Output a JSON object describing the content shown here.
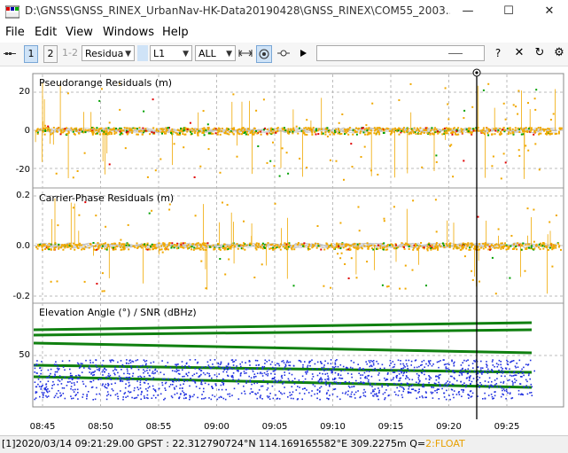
{
  "window": {
    "title": "D:\\GNSS\\GNSS_RINEX_UrbanNav-HK-Data20190428\\GNSS_RINEX\\COM55_2003...",
    "minimize": "—",
    "maximize": "☐",
    "close": "✕"
  },
  "menu": [
    "File",
    "Edit",
    "View",
    "Windows",
    "Help"
  ],
  "toolbar": {
    "btn1": "1",
    "btn2": "2",
    "btn12": "1-2",
    "plot_type": "Residua",
    "freq": "L1",
    "sat": "ALL",
    "help": "?"
  },
  "panels": {
    "p1_title": "Pseudorange Residuals (m)",
    "p1_ticks": [
      "20",
      "0",
      "-20"
    ],
    "p2_title": "Carrier-Phase Residuals (m)",
    "p2_ticks": [
      "0.2",
      "0.0",
      "-0.2"
    ],
    "p3_title": "Elevation Angle (°) / SNR (dBHz)",
    "p3_ticks": [
      "50"
    ]
  },
  "time_axis": [
    "08:45",
    "08:50",
    "08:55",
    "09:00",
    "09:05",
    "09:10",
    "09:15",
    "09:20",
    "09:25"
  ],
  "status": {
    "prefix": "[1]2020/03/14 09:21:29.00 GPST :  22.312790724°N  114.169165582°E  309.2275m  Q=",
    "quality": "2:FLOAT"
  },
  "colors": {
    "residual_main": "#f0a800",
    "residual_green": "#00a000",
    "residual_red": "#e00000",
    "elevation": "#108010",
    "snr": "#2030e0",
    "trace": "#c0c0c0"
  }
}
